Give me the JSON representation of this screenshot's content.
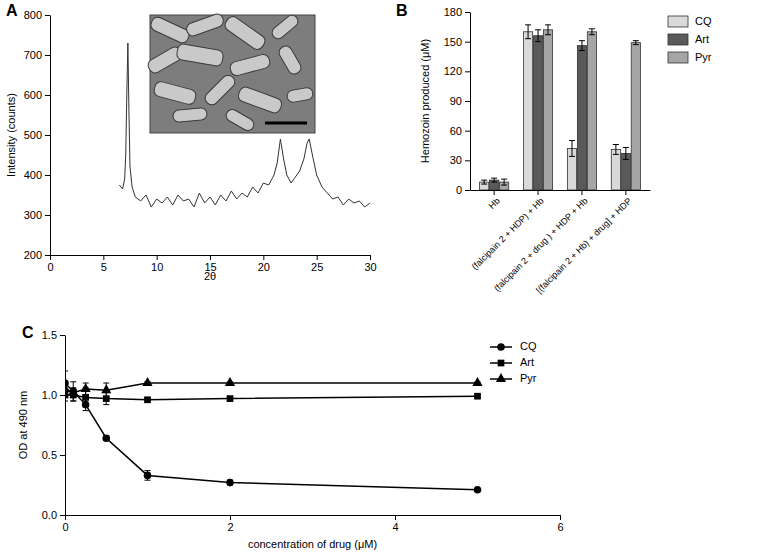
{
  "chart_data": [
    {
      "type": "line",
      "title": "A",
      "x_label": "2θ",
      "y_label": "Intensity (counts)",
      "x": [
        6.5,
        6.8,
        7.0,
        7.1,
        7.2,
        7.3,
        7.4,
        7.5,
        7.7,
        8.0,
        8.5,
        9,
        9.5,
        10,
        10.5,
        11,
        11.5,
        12,
        12.5,
        13,
        13.5,
        14,
        14.5,
        15,
        15.5,
        16,
        16.5,
        17,
        17.5,
        18,
        18.5,
        19,
        19.5,
        20,
        20.5,
        21,
        21.3,
        21.6,
        21.9,
        22.2,
        22.6,
        23,
        23.4,
        23.8,
        24.1,
        24.3,
        24.6,
        25,
        25.5,
        26,
        26.5,
        27,
        27.5,
        28,
        28.5,
        29,
        29.5,
        30
      ],
      "values": [
        375,
        365,
        390,
        450,
        600,
        730,
        560,
        420,
        370,
        345,
        335,
        350,
        320,
        340,
        330,
        345,
        325,
        350,
        335,
        340,
        320,
        355,
        330,
        345,
        325,
        350,
        335,
        360,
        340,
        355,
        345,
        370,
        355,
        380,
        375,
        400,
        430,
        490,
        440,
        400,
        380,
        395,
        410,
        440,
        480,
        490,
        450,
        400,
        370,
        355,
        340,
        345,
        325,
        340,
        330,
        335,
        320,
        330
      ],
      "color": "#333333",
      "xlim": [
        0,
        30
      ],
      "xticks": [
        0,
        5,
        10,
        15,
        20,
        25,
        30
      ],
      "ylim": [
        200,
        800
      ],
      "yticks": [
        200,
        300,
        400,
        500,
        600,
        700,
        800
      ]
    },
    {
      "type": "bar",
      "title": "B",
      "y_label": "Hemozoin produced (μM)",
      "categories": [
        "Hb",
        "(falcipain 2 + HDP) + Hb",
        "(falcipain 2 + drug ) + HDP + Hb",
        "[(falcipain 2 + Hb) + drug] + HDP"
      ],
      "series": [
        {
          "name": "CQ",
          "color": "#d9d9d9",
          "values": [
            8,
            160,
            42,
            41
          ],
          "errors": [
            2,
            7,
            8,
            5
          ]
        },
        {
          "name": "Art",
          "color": "#5a5a5a",
          "values": [
            10,
            156,
            146,
            37
          ],
          "errors": [
            2,
            6,
            5,
            6
          ]
        },
        {
          "name": "Pyr",
          "color": "#a6a6a6",
          "values": [
            8,
            162,
            160,
            149
          ],
          "errors": [
            3,
            5,
            3,
            2
          ]
        }
      ],
      "ylim": [
        0,
        180
      ],
      "yticks": [
        0,
        30,
        60,
        90,
        120,
        150,
        180
      ],
      "legend": "right"
    },
    {
      "type": "line",
      "title": "C",
      "x_label": "concentration of drug (μM)",
      "y_label": "OD at 490 nm",
      "x": [
        0,
        0.1,
        0.25,
        0.5,
        1,
        2,
        5
      ],
      "series": [
        {
          "name": "CQ",
          "color": "#000000",
          "marker": "circle",
          "line_style": "solid",
          "values": [
            1.1,
            1.03,
            0.92,
            0.64,
            0.33,
            0.27,
            0.21
          ],
          "errors": [
            0.1,
            0.08,
            0.05,
            0.02,
            0.04,
            0.02,
            0.01
          ]
        },
        {
          "name": "Art",
          "color": "#000000",
          "marker": "square",
          "line_style": "solid",
          "values": [
            1.0,
            1.0,
            0.98,
            0.97,
            0.96,
            0.97,
            0.99
          ],
          "errors": [
            0.05,
            0.05,
            0.08,
            0.05,
            0.02,
            0.01,
            0.01
          ]
        },
        {
          "name": "Pyr",
          "color": "#000000",
          "marker": "triangle",
          "line_style": "solid",
          "values": [
            1.05,
            1.02,
            1.05,
            1.04,
            1.1,
            1.1,
            1.1
          ],
          "errors": [
            0.05,
            0.04,
            0.05,
            0.06,
            0.01,
            0.01,
            0.01
          ]
        }
      ],
      "xlim": [
        0,
        6
      ],
      "xticks": [
        0,
        2,
        4,
        6
      ],
      "ylim": [
        0,
        1.5
      ],
      "yticks": [
        {
          "value": 0,
          "label": "0.0"
        },
        0.5,
        {
          "value": 1,
          "label": "1.0"
        },
        1.5
      ],
      "legend": "top-right"
    }
  ]
}
